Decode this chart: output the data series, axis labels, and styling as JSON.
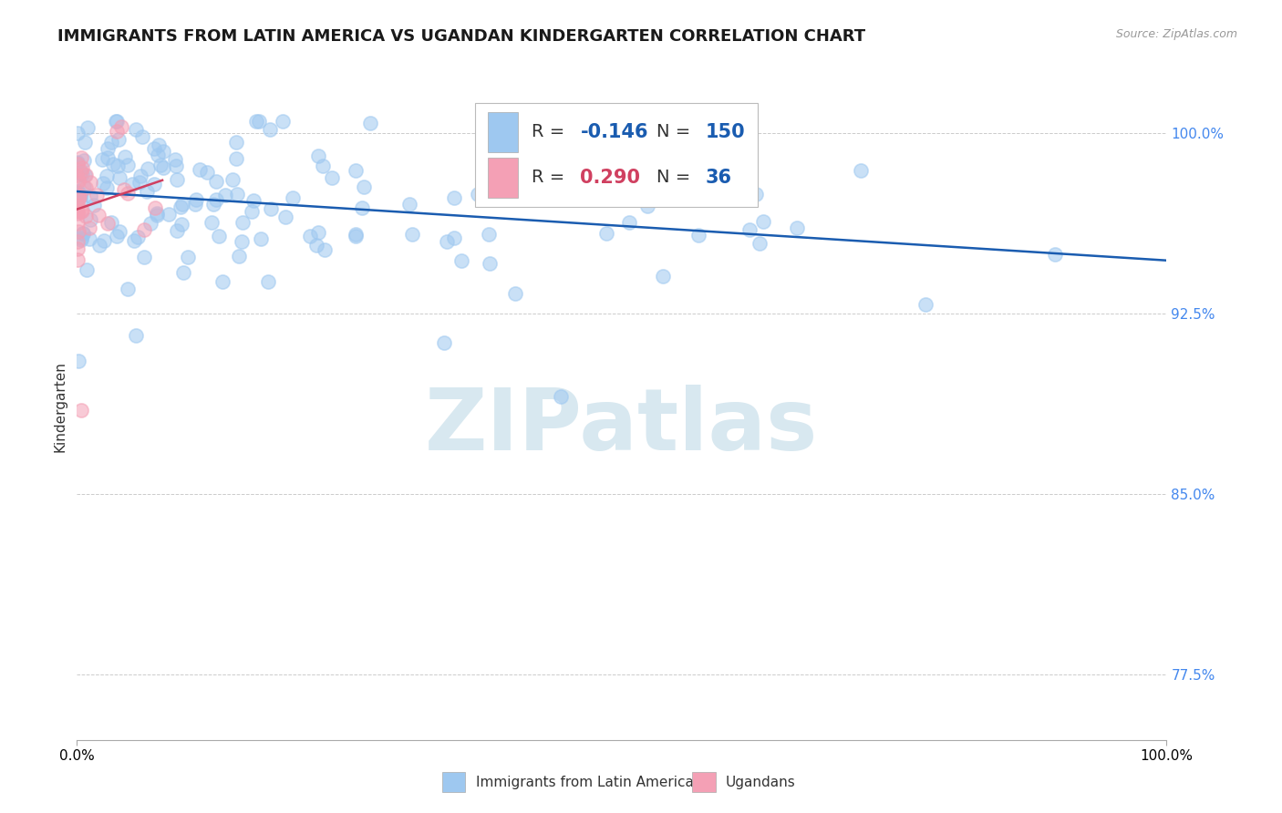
{
  "title": "IMMIGRANTS FROM LATIN AMERICA VS UGANDAN KINDERGARTEN CORRELATION CHART",
  "source_text": "Source: ZipAtlas.com",
  "xlabel_legend_blue": "Immigrants from Latin America",
  "xlabel_legend_pink": "Ugandans",
  "ylabel": "Kindergarten",
  "R_blue": -0.146,
  "N_blue": 150,
  "R_pink": 0.29,
  "N_pink": 36,
  "xlim": [
    0.0,
    1.0
  ],
  "ylim": [
    0.748,
    1.025
  ],
  "yticks": [
    0.775,
    0.85,
    0.925,
    1.0
  ],
  "ytick_labels": [
    "77.5%",
    "85.0%",
    "92.5%",
    "100.0%"
  ],
  "xtick_labels": [
    "0.0%",
    "100.0%"
  ],
  "color_blue": "#9EC8F0",
  "color_pink": "#F4A0B5",
  "trend_color_blue": "#1A5CB0",
  "trend_color_pink": "#D04060",
  "watermark_text": "ZIPatlas",
  "background_color": "#FFFFFF",
  "grid_color": "#CCCCCC",
  "title_fontsize": 13,
  "axis_label_fontsize": 11,
  "tick_label_fontsize": 11,
  "legend_R_color_blue": "#1A5CB0",
  "legend_R_color_pink": "#D04060",
  "legend_N_color_blue": "#1A5CB0",
  "legend_N_color_pink": "#1A5CB0",
  "watermark_color": "#D8E8F0",
  "scatter_size": 120,
  "scatter_alpha": 0.55,
  "trend_linewidth": 1.8
}
